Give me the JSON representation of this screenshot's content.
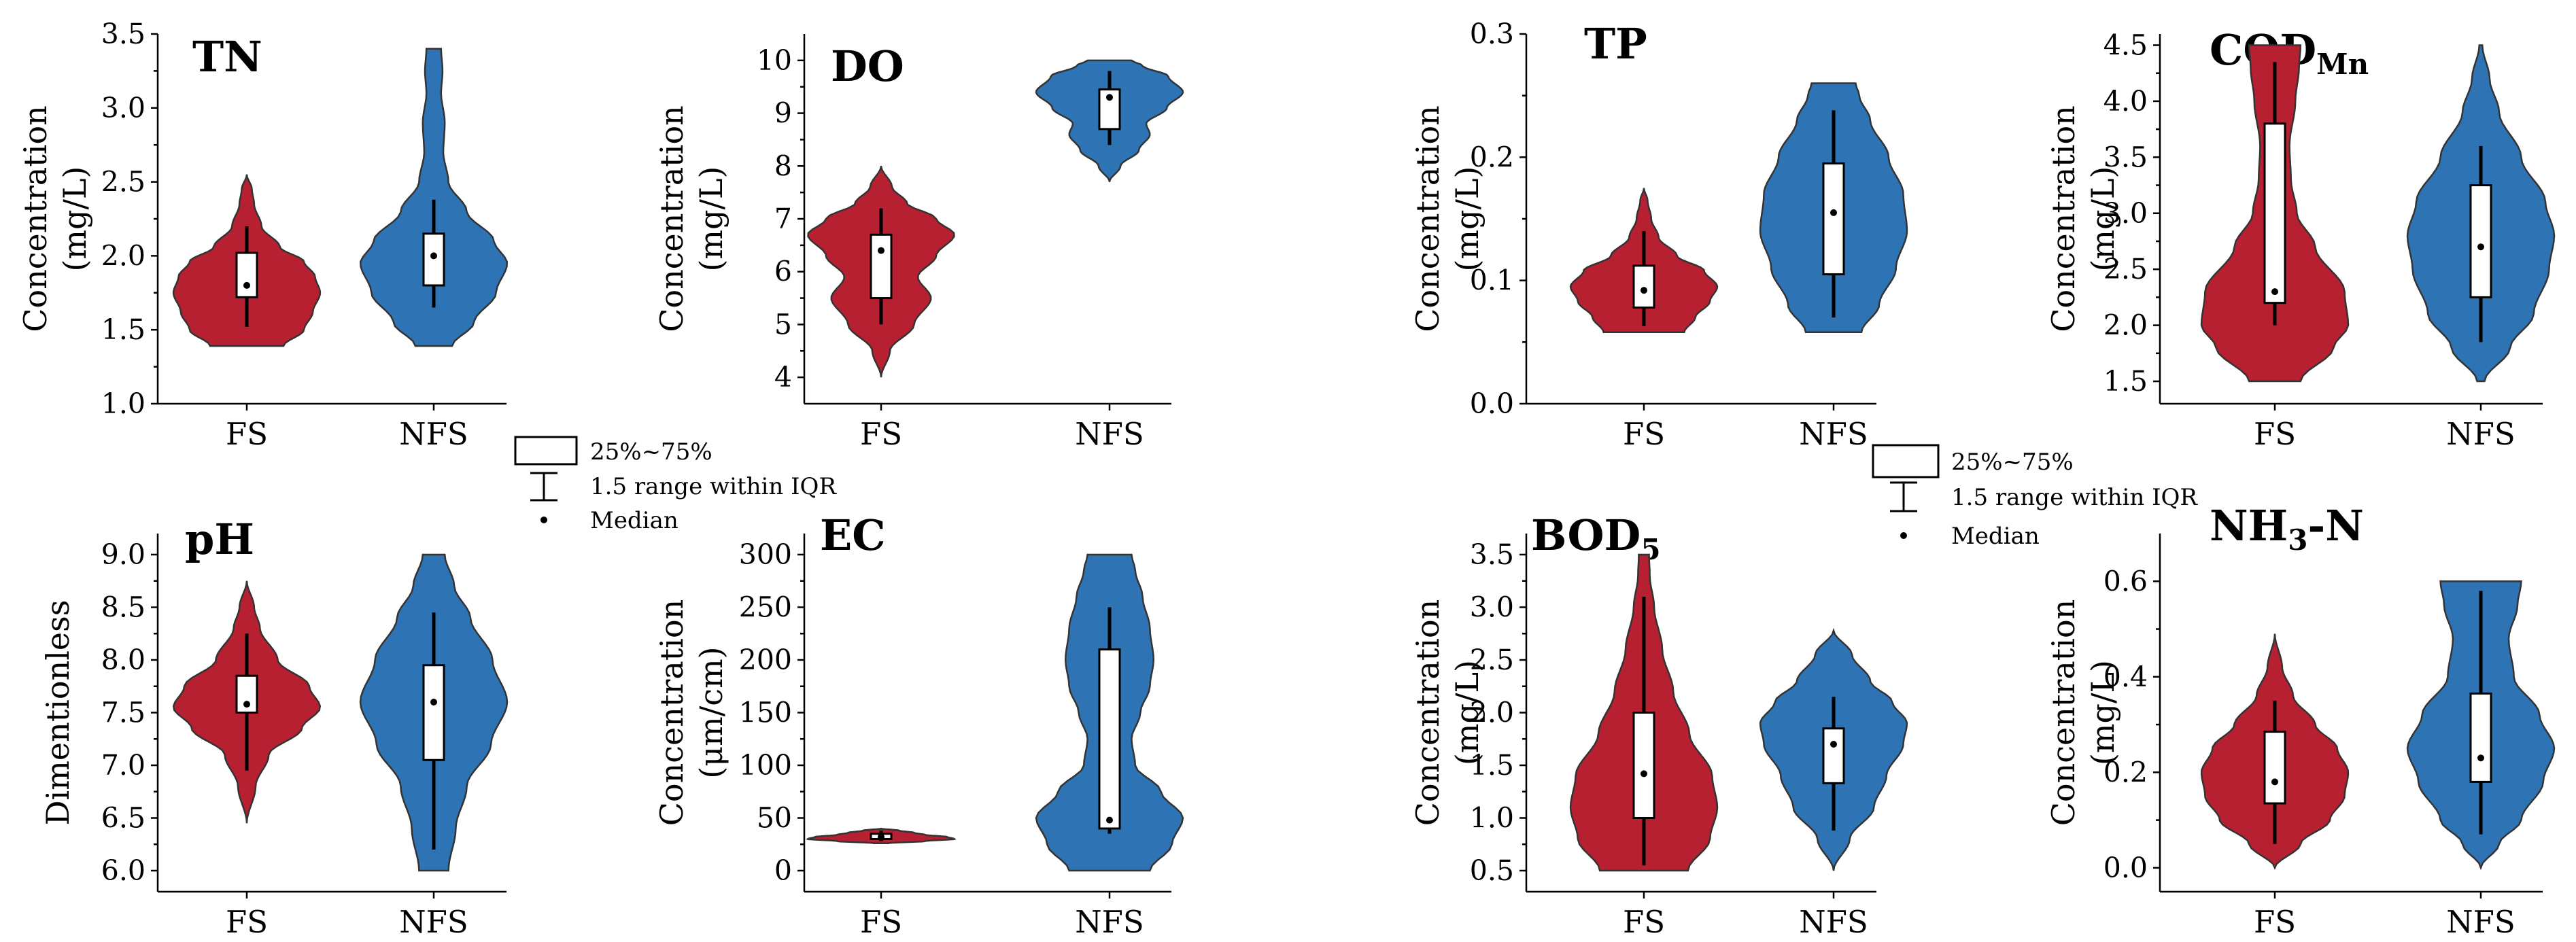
{
  "colors": {
    "fs": "#b72030",
    "nfs": "#2e74b5"
  },
  "legend": {
    "box_label": "25%~75%",
    "whisker_label": "1.5 range within IQR",
    "median_label": "Median"
  },
  "chart_data": [
    {
      "type": "violin",
      "title": "TN",
      "title_sub": "",
      "title_after": "",
      "ylabel_lines": [
        "Concentration",
        "(mg/L)"
      ],
      "ylim": [
        1.0,
        3.5
      ],
      "yticks": [
        "1.0",
        "1.5",
        "2.0",
        "2.5",
        "3.0",
        "3.5"
      ],
      "categories": [
        "FS",
        "NFS"
      ],
      "series": [
        {
          "violin_range": [
            1.39,
            2.55
          ],
          "box": [
            1.72,
            2.02
          ],
          "whisker": [
            1.52,
            2.2
          ],
          "median": 1.8,
          "profile": [
            [
              1.39,
              0.5
            ],
            [
              1.5,
              0.78
            ],
            [
              1.62,
              0.9
            ],
            [
              1.75,
              1.0
            ],
            [
              1.86,
              0.93
            ],
            [
              1.96,
              0.78
            ],
            [
              2.06,
              0.45
            ],
            [
              2.2,
              0.2
            ],
            [
              2.35,
              0.1
            ],
            [
              2.45,
              0.07
            ],
            [
              2.55,
              0
            ]
          ]
        },
        {
          "violin_range": [
            1.39,
            3.4
          ],
          "box": [
            1.8,
            2.15
          ],
          "whisker": [
            1.65,
            2.38
          ],
          "median": 2.0,
          "profile": [
            [
              1.39,
              0.25
            ],
            [
              1.55,
              0.55
            ],
            [
              1.75,
              0.85
            ],
            [
              1.95,
              1.0
            ],
            [
              2.1,
              0.82
            ],
            [
              2.3,
              0.45
            ],
            [
              2.5,
              0.2
            ],
            [
              2.7,
              0.13
            ],
            [
              2.9,
              0.15
            ],
            [
              3.1,
              0.1
            ],
            [
              3.25,
              0.12
            ],
            [
              3.4,
              0.1
            ]
          ]
        }
      ]
    },
    {
      "type": "violin",
      "title": "DO",
      "title_sub": "",
      "title_after": "",
      "ylabel_lines": [
        "Concentration",
        "(mg/L)"
      ],
      "ylim": [
        3.5,
        10.5
      ],
      "yticks": [
        "4",
        "5",
        "6",
        "7",
        "8",
        "9",
        "10"
      ],
      "categories": [
        "FS",
        "NFS"
      ],
      "series": [
        {
          "violin_range": [
            4.0,
            8.0
          ],
          "box": [
            5.5,
            6.7
          ],
          "whisker": [
            5.0,
            7.2
          ],
          "median": 6.4,
          "profile": [
            [
              4.0,
              0.0
            ],
            [
              4.5,
              0.12
            ],
            [
              5.0,
              0.45
            ],
            [
              5.5,
              0.68
            ],
            [
              5.9,
              0.5
            ],
            [
              6.3,
              0.75
            ],
            [
              6.7,
              1.0
            ],
            [
              7.0,
              0.75
            ],
            [
              7.3,
              0.35
            ],
            [
              7.6,
              0.15
            ],
            [
              8.0,
              0.0
            ]
          ]
        },
        {
          "violin_range": [
            7.7,
            10.0
          ],
          "box": [
            8.7,
            9.45
          ],
          "whisker": [
            8.4,
            9.8
          ],
          "median": 9.3,
          "profile": [
            [
              7.7,
              0.0
            ],
            [
              8.0,
              0.15
            ],
            [
              8.3,
              0.4
            ],
            [
              8.6,
              0.55
            ],
            [
              8.8,
              0.5
            ],
            [
              9.1,
              0.78
            ],
            [
              9.4,
              1.0
            ],
            [
              9.7,
              0.8
            ],
            [
              9.9,
              0.45
            ],
            [
              10.0,
              0.3
            ]
          ]
        }
      ]
    },
    {
      "type": "violin",
      "title": "TP",
      "title_sub": "",
      "title_after": "",
      "ylabel_lines": [
        "Concentration",
        "(mg/L)"
      ],
      "ylim": [
        0.0,
        0.3
      ],
      "yticks": [
        "0.0",
        "0.1",
        "0.2",
        "0.3"
      ],
      "categories": [
        "FS",
        "NFS"
      ],
      "series": [
        {
          "violin_range": [
            0.058,
            0.175
          ],
          "box": [
            0.078,
            0.112
          ],
          "whisker": [
            0.063,
            0.14
          ],
          "median": 0.092,
          "profile": [
            [
              0.058,
              0.55
            ],
            [
              0.07,
              0.7
            ],
            [
              0.083,
              0.9
            ],
            [
              0.095,
              1.0
            ],
            [
              0.108,
              0.82
            ],
            [
              0.12,
              0.45
            ],
            [
              0.135,
              0.2
            ],
            [
              0.15,
              0.1
            ],
            [
              0.165,
              0.05
            ],
            [
              0.175,
              0
            ]
          ]
        },
        {
          "violin_range": [
            0.058,
            0.26
          ],
          "box": [
            0.105,
            0.195
          ],
          "whisker": [
            0.07,
            0.238
          ],
          "median": 0.155,
          "profile": [
            [
              0.058,
              0.38
            ],
            [
              0.08,
              0.62
            ],
            [
              0.11,
              0.85
            ],
            [
              0.14,
              1.0
            ],
            [
              0.17,
              0.95
            ],
            [
              0.2,
              0.75
            ],
            [
              0.23,
              0.5
            ],
            [
              0.25,
              0.35
            ],
            [
              0.26,
              0.3
            ]
          ]
        }
      ]
    },
    {
      "type": "violin",
      "title": "COD",
      "title_sub": "Mn",
      "title_after": "",
      "ylabel_lines": [
        "Concentration",
        "(mg/L)"
      ],
      "ylim": [
        1.3,
        4.6
      ],
      "yticks": [
        "1.5",
        "2.0",
        "2.5",
        "3.0",
        "3.5",
        "4.0",
        "4.5"
      ],
      "categories": [
        "FS",
        "NFS"
      ],
      "series": [
        {
          "violin_range": [
            1.5,
            4.5
          ],
          "box": [
            2.2,
            3.8
          ],
          "whisker": [
            2.0,
            4.35
          ],
          "median": 2.3,
          "profile": [
            [
              1.5,
              0.35
            ],
            [
              1.8,
              0.8
            ],
            [
              2.0,
              1.0
            ],
            [
              2.3,
              0.95
            ],
            [
              2.7,
              0.55
            ],
            [
              3.0,
              0.3
            ],
            [
              3.3,
              0.22
            ],
            [
              3.6,
              0.2
            ],
            [
              4.0,
              0.28
            ],
            [
              4.3,
              0.33
            ],
            [
              4.5,
              0.35
            ]
          ]
        },
        {
          "violin_range": [
            1.5,
            4.5
          ],
          "box": [
            2.25,
            3.25
          ],
          "whisker": [
            1.85,
            3.6
          ],
          "median": 2.7,
          "profile": [
            [
              1.5,
              0.05
            ],
            [
              1.8,
              0.4
            ],
            [
              2.1,
              0.72
            ],
            [
              2.5,
              0.93
            ],
            [
              2.8,
              1.0
            ],
            [
              3.1,
              0.88
            ],
            [
              3.5,
              0.55
            ],
            [
              3.9,
              0.25
            ],
            [
              4.2,
              0.12
            ],
            [
              4.5,
              0.02
            ]
          ]
        }
      ]
    },
    {
      "type": "violin",
      "title": "pH",
      "title_sub": "",
      "title_after": "",
      "ylabel_lines": [
        "Dimentionless"
      ],
      "ylim": [
        5.8,
        9.2
      ],
      "yticks": [
        "6.0",
        "6.5",
        "7.0",
        "7.5",
        "8.0",
        "8.5",
        "9.0"
      ],
      "categories": [
        "FS",
        "NFS"
      ],
      "series": [
        {
          "violin_range": [
            6.45,
            8.75
          ],
          "box": [
            7.5,
            7.85
          ],
          "whisker": [
            6.95,
            8.25
          ],
          "median": 7.58,
          "profile": [
            [
              6.45,
              0.0
            ],
            [
              6.8,
              0.12
            ],
            [
              7.1,
              0.3
            ],
            [
              7.35,
              0.75
            ],
            [
              7.55,
              1.0
            ],
            [
              7.75,
              0.85
            ],
            [
              8.0,
              0.42
            ],
            [
              8.3,
              0.18
            ],
            [
              8.5,
              0.1
            ],
            [
              8.75,
              0.0
            ]
          ]
        },
        {
          "violin_range": [
            6.0,
            9.0
          ],
          "box": [
            7.05,
            7.95
          ],
          "whisker": [
            6.2,
            8.45
          ],
          "median": 7.6,
          "profile": [
            [
              6.0,
              0.2
            ],
            [
              6.4,
              0.3
            ],
            [
              6.8,
              0.45
            ],
            [
              7.2,
              0.78
            ],
            [
              7.6,
              1.0
            ],
            [
              8.0,
              0.8
            ],
            [
              8.4,
              0.5
            ],
            [
              8.7,
              0.28
            ],
            [
              9.0,
              0.15
            ]
          ]
        }
      ]
    },
    {
      "type": "violin",
      "title": "EC",
      "title_sub": "",
      "title_after": "",
      "ylabel_lines": [
        "Concentration",
        "(μm/cm)"
      ],
      "ylim": [
        -20,
        320
      ],
      "yticks": [
        "0",
        "50",
        "100",
        "150",
        "200",
        "250",
        "300"
      ],
      "categories": [
        "FS",
        "NFS"
      ],
      "series": [
        {
          "violin_range": [
            26,
            40
          ],
          "box": [
            30,
            35
          ],
          "whisker": [
            28,
            38
          ],
          "median": 32,
          "profile": [
            [
              26,
              0.1
            ],
            [
              28,
              0.6
            ],
            [
              30,
              1.0
            ],
            [
              32,
              0.9
            ],
            [
              34,
              0.6
            ],
            [
              36,
              0.45
            ],
            [
              38,
              0.25
            ],
            [
              40,
              0
            ]
          ]
        },
        {
          "violin_range": [
            0,
            300
          ],
          "box": [
            40,
            210
          ],
          "whisker": [
            35,
            250
          ],
          "median": 48,
          "profile": [
            [
              0,
              0.55
            ],
            [
              25,
              0.85
            ],
            [
              50,
              1.0
            ],
            [
              75,
              0.7
            ],
            [
              100,
              0.35
            ],
            [
              125,
              0.3
            ],
            [
              150,
              0.42
            ],
            [
              175,
              0.55
            ],
            [
              200,
              0.6
            ],
            [
              230,
              0.55
            ],
            [
              260,
              0.45
            ],
            [
              285,
              0.35
            ],
            [
              300,
              0.3
            ]
          ]
        }
      ]
    },
    {
      "type": "violin",
      "title": "BOD",
      "title_sub": "5",
      "title_after": "",
      "ylabel_lines": [
        "Concentration",
        "(mg/L)"
      ],
      "ylim": [
        0.3,
        3.7
      ],
      "yticks": [
        "0.5",
        "1.0",
        "1.5",
        "2.0",
        "2.5",
        "3.0",
        "3.5"
      ],
      "categories": [
        "FS",
        "NFS"
      ],
      "series": [
        {
          "violin_range": [
            0.5,
            3.5
          ],
          "box": [
            1.0,
            2.0
          ],
          "whisker": [
            0.55,
            3.1
          ],
          "median": 1.42,
          "profile": [
            [
              0.5,
              0.6
            ],
            [
              0.8,
              0.9
            ],
            [
              1.1,
              1.0
            ],
            [
              1.4,
              0.93
            ],
            [
              1.8,
              0.62
            ],
            [
              2.2,
              0.4
            ],
            [
              2.6,
              0.25
            ],
            [
              3.0,
              0.14
            ],
            [
              3.3,
              0.08
            ],
            [
              3.5,
              0.07
            ]
          ]
        },
        {
          "violin_range": [
            0.5,
            2.78
          ],
          "box": [
            1.33,
            1.85
          ],
          "whisker": [
            0.88,
            2.15
          ],
          "median": 1.7,
          "profile": [
            [
              0.5,
              0.0
            ],
            [
              0.8,
              0.22
            ],
            [
              1.1,
              0.55
            ],
            [
              1.4,
              0.72
            ],
            [
              1.7,
              0.95
            ],
            [
              1.9,
              1.0
            ],
            [
              2.1,
              0.8
            ],
            [
              2.3,
              0.5
            ],
            [
              2.55,
              0.25
            ],
            [
              2.78,
              0.0
            ]
          ]
        }
      ]
    },
    {
      "type": "violin",
      "title": "NH",
      "title_sub": "3",
      "title_after": "-N",
      "ylabel_lines": [
        "Concentration",
        "(mg/L)"
      ],
      "ylim": [
        -0.05,
        0.7
      ],
      "yticks": [
        "0.0",
        "0.2",
        "0.4",
        "0.6"
      ],
      "categories": [
        "FS",
        "NFS"
      ],
      "series": [
        {
          "violin_range": [
            0.0,
            0.49
          ],
          "box": [
            0.135,
            0.285
          ],
          "whisker": [
            0.05,
            0.35
          ],
          "median": 0.18,
          "profile": [
            [
              0.0,
              0.0
            ],
            [
              0.05,
              0.35
            ],
            [
              0.1,
              0.75
            ],
            [
              0.15,
              0.95
            ],
            [
              0.2,
              1.0
            ],
            [
              0.25,
              0.85
            ],
            [
              0.3,
              0.55
            ],
            [
              0.36,
              0.25
            ],
            [
              0.42,
              0.1
            ],
            [
              0.49,
              0.0
            ]
          ]
        },
        {
          "violin_range": [
            0.0,
            0.6
          ],
          "box": [
            0.18,
            0.365
          ],
          "whisker": [
            0.07,
            0.58
          ],
          "median": 0.23,
          "profile": [
            [
              0.0,
              0.0
            ],
            [
              0.05,
              0.25
            ],
            [
              0.1,
              0.55
            ],
            [
              0.18,
              0.85
            ],
            [
              0.25,
              1.0
            ],
            [
              0.32,
              0.8
            ],
            [
              0.4,
              0.45
            ],
            [
              0.48,
              0.38
            ],
            [
              0.55,
              0.5
            ],
            [
              0.6,
              0.55
            ]
          ]
        }
      ]
    }
  ]
}
